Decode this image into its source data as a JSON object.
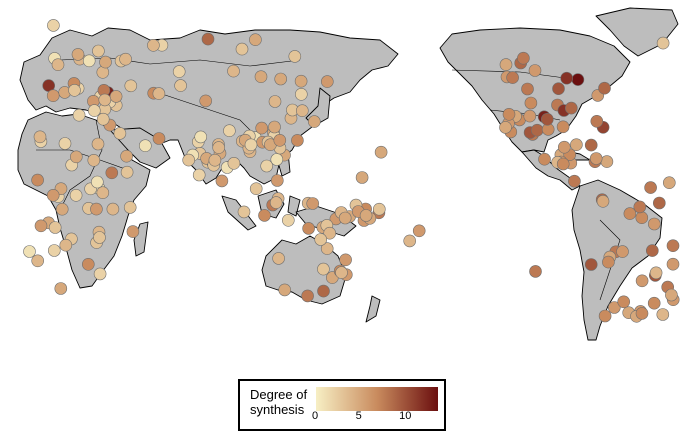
{
  "legend": {
    "title_line1": "Degree of",
    "title_line2": "synthesis",
    "ticks": [
      "0",
      "5",
      "10"
    ],
    "min": 0,
    "max": 14
  },
  "colors": {
    "scale_low": "#f7efc4",
    "scale_mid": "#c98b5e",
    "scale_high": "#6b0f0f",
    "land": "#bdbdbd",
    "ocean": "#ffffff"
  },
  "regions": {
    "europe_med": {
      "lon": [
        -10,
        40
      ],
      "lat": [
        34,
        60
      ],
      "values": [
        2,
        3,
        4,
        1,
        5,
        3,
        2,
        6,
        4,
        3,
        12,
        13,
        5,
        4,
        2,
        3,
        6,
        7,
        3,
        2,
        4,
        5,
        1,
        3,
        2,
        8,
        4,
        3,
        5,
        2
      ]
    },
    "north_africa_mideast": {
      "lon": [
        -10,
        60
      ],
      "lat": [
        12,
        34
      ],
      "values": [
        2,
        3,
        5,
        4,
        1,
        6,
        3,
        2,
        4,
        5,
        3,
        2,
        7,
        4
      ]
    },
    "subsaharan_africa": {
      "lon": [
        -15,
        40
      ],
      "lat": [
        -34,
        12
      ],
      "values": [
        3,
        4,
        2,
        6,
        5,
        1,
        3,
        7,
        4,
        2,
        5,
        6,
        3,
        1,
        4,
        8,
        2,
        5,
        3,
        6,
        4,
        1,
        2,
        7,
        3,
        5,
        4,
        2,
        6,
        3
      ]
    },
    "central_asia_russia": {
      "lon": [
        40,
        150
      ],
      "lat": [
        40,
        65
      ],
      "values": [
        3,
        5,
        4,
        2,
        6,
        5,
        7,
        4,
        3,
        5,
        2,
        6,
        4,
        9,
        3,
        5
      ]
    },
    "south_asia": {
      "lon": [
        68,
        92
      ],
      "lat": [
        8,
        30
      ],
      "values": [
        2,
        1,
        3,
        5,
        4,
        2,
        6,
        1,
        3,
        4,
        2,
        5,
        3,
        2,
        4,
        1,
        3
      ]
    },
    "se_asia": {
      "lon": [
        92,
        122
      ],
      "lat": [
        -8,
        28
      ],
      "values": [
        1,
        2,
        3,
        4,
        2,
        5,
        6,
        3,
        4,
        2,
        7,
        5,
        3,
        4,
        2,
        6,
        3,
        5,
        4,
        2,
        1,
        8,
        3,
        4
      ]
    },
    "east_asia": {
      "lon": [
        105,
        142
      ],
      "lat": [
        22,
        45
      ],
      "values": [
        3,
        5,
        4,
        6,
        2,
        5,
        4,
        3,
        7,
        5,
        4,
        6
      ]
    },
    "new_guinea_pacific": {
      "lon": [
        130,
        170
      ],
      "lat": [
        -12,
        0
      ],
      "values": [
        5,
        6,
        4,
        7,
        5,
        3,
        6,
        8,
        4,
        5,
        6,
        3,
        7,
        5,
        4,
        6,
        5,
        3
      ]
    },
    "australia": {
      "lon": [
        115,
        152
      ],
      "lat": [
        -38,
        -14
      ],
      "values": [
        4,
        6,
        9,
        5,
        3,
        7,
        4,
        5,
        6,
        8,
        4,
        3
      ]
    },
    "north_america_west": {
      "lon": [
        -125,
        -105
      ],
      "lat": [
        25,
        60
      ],
      "values": [
        6,
        7,
        8,
        5,
        9,
        6,
        7,
        8,
        10,
        5,
        6,
        7,
        9,
        8,
        6,
        7,
        5,
        8
      ]
    },
    "north_america_east": {
      "lon": [
        -105,
        -70
      ],
      "lat": [
        28,
        50
      ],
      "values": [
        6,
        8,
        10,
        13,
        12,
        9,
        7,
        11,
        14,
        8,
        10,
        9,
        12,
        7
      ]
    },
    "mesoamerica_caribbean": {
      "lon": [
        -110,
        -70
      ],
      "lat": [
        8,
        25
      ],
      "values": [
        5,
        6,
        7,
        8,
        5,
        9,
        6,
        7,
        4,
        8,
        6,
        5,
        7,
        6
      ]
    },
    "south_america": {
      "lon": [
        -80,
        -35
      ],
      "lat": [
        -45,
        10
      ],
      "values": [
        5,
        6,
        7,
        8,
        9,
        6,
        5,
        7,
        10,
        8,
        6,
        5,
        7,
        9,
        6,
        8,
        4,
        7,
        6,
        5,
        8,
        9,
        7,
        6,
        5,
        10,
        7,
        6,
        8,
        5,
        4,
        7
      ]
    }
  },
  "isolated_sites": [
    {
      "lon": -2,
      "lat": 70,
      "value": 2
    },
    {
      "lon": 170,
      "lat": 20,
      "value": 5
    },
    {
      "lon": -175,
      "lat": -15,
      "value": 4
    },
    {
      "lon": -109,
      "lat": -27,
      "value": 8
    },
    {
      "lon": -42,
      "lat": 63,
      "value": 3
    },
    {
      "lon": -170,
      "lat": -11,
      "value": 6
    },
    {
      "lon": 160,
      "lat": 10,
      "value": 5
    }
  ]
}
